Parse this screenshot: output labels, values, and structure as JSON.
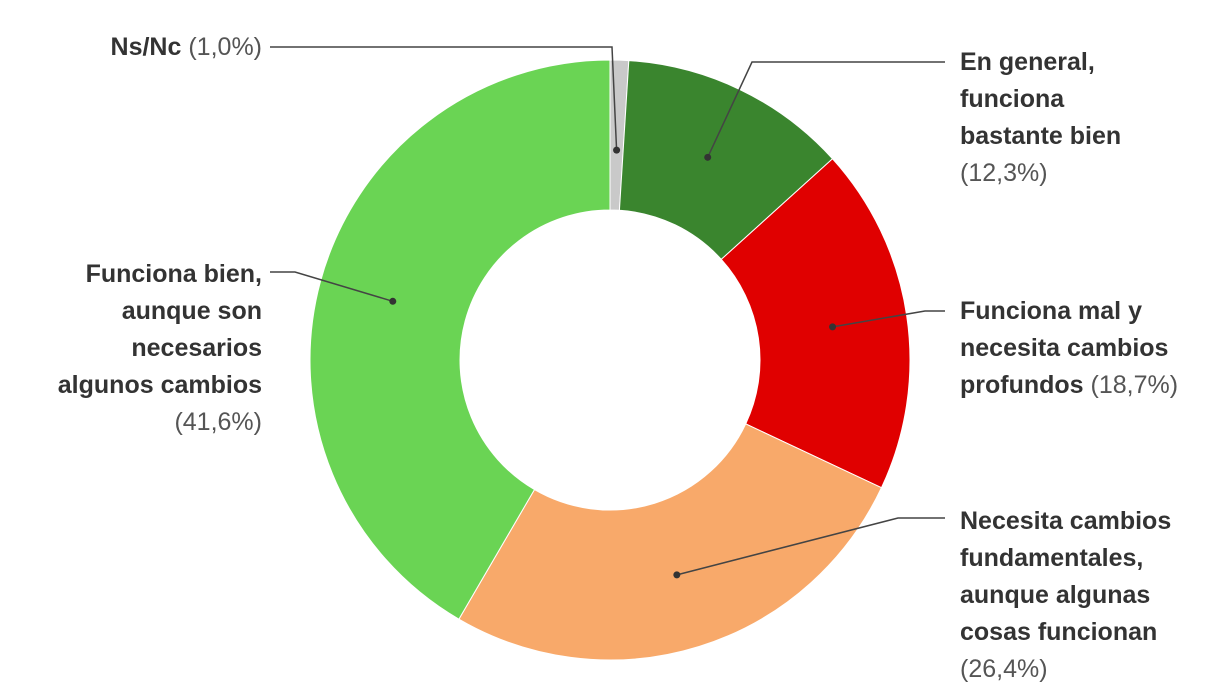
{
  "chart_data": {
    "type": "donut",
    "categories": [
      "Ns/Nc",
      "En general, funciona bastante bien",
      "Funciona mal y necesita cambios profundos",
      "Necesita cambios fundamentales, aunque algunas cosas funcionan",
      "Funciona bien, aunque son necesarios algunos cambios"
    ],
    "values": [
      1.0,
      12.3,
      18.7,
      26.4,
      41.6
    ],
    "value_labels": [
      "(1,0%)",
      "(12,3%)",
      "(18,7%)",
      "(26,4%)",
      "(41,6%)"
    ],
    "colors": [
      "#c9c9c9",
      "#3a852e",
      "#e00000",
      "#f8a96a",
      "#6ad454"
    ]
  }
}
